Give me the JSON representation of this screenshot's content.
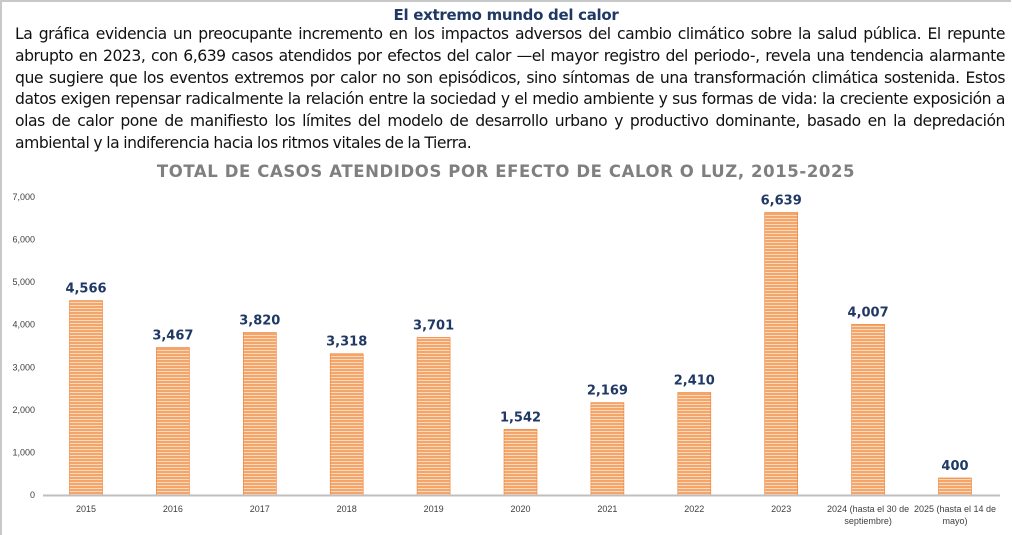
{
  "document": {
    "heading": "El extremo mundo del calor",
    "paragraph": "La gráfica evidencia un preocupante incremento en los impactos adversos del cambio climático sobre la salud pública. El repunte abrupto en 2023, con 6,639 casos atendidos por efectos del calor —el mayor registro del periodo-, revela una tendencia alarmante que sugiere que los eventos extremos por calor no son episódicos, sino síntomas de una transformación climática sostenida. Estos datos exigen repensar radicalmente la relación entre la sociedad y el medio ambiente y sus formas de vida: la creciente exposición a olas de calor pone de manifiesto los límites del modelo de desarrollo urbano y productivo dominante, basado en la depredación ambiental y la indiferencia hacia los ritmos vitales de la Tierra."
  },
  "colors": {
    "bar": "#f4a66a",
    "bar_stripe": "#ffffff",
    "bar_edge": "#ed7d31",
    "data_label": "#1f3864",
    "title": "#7f7f7f",
    "axis": "#bfbfbf"
  },
  "chart_data": {
    "type": "bar",
    "title": "TOTAL DE CASOS ATENDIDOS POR EFECTO DE CALOR O LUZ, 2015-2025",
    "xlabel": "",
    "ylabel": "",
    "ylim": [
      0,
      7000
    ],
    "yticks": [
      0,
      1000,
      2000,
      3000,
      4000,
      5000,
      6000,
      7000
    ],
    "ytick_labels": [
      "0",
      "1,000",
      "2,000",
      "3,000",
      "4,000",
      "5,000",
      "6,000",
      "7,000"
    ],
    "grid": false,
    "legend": "none",
    "categories": [
      [
        "2015"
      ],
      [
        "2016"
      ],
      [
        "2017"
      ],
      [
        "2018"
      ],
      [
        "2019"
      ],
      [
        "2020"
      ],
      [
        "2021"
      ],
      [
        "2022"
      ],
      [
        "2023"
      ],
      [
        "2024 (hasta el 30 de",
        "septiembre)"
      ],
      [
        "2025 (hasta el 14 de",
        "mayo)"
      ]
    ],
    "values": [
      4566,
      3467,
      3820,
      3318,
      3701,
      1542,
      2169,
      2410,
      6639,
      4007,
      400
    ],
    "data_labels": [
      "4,566",
      "3,467",
      "3,820",
      "3,318",
      "3,701",
      "1,542",
      "2,169",
      "2,410",
      "6,639",
      "4,007",
      "400"
    ],
    "pattern": "horizontal-stripes"
  }
}
